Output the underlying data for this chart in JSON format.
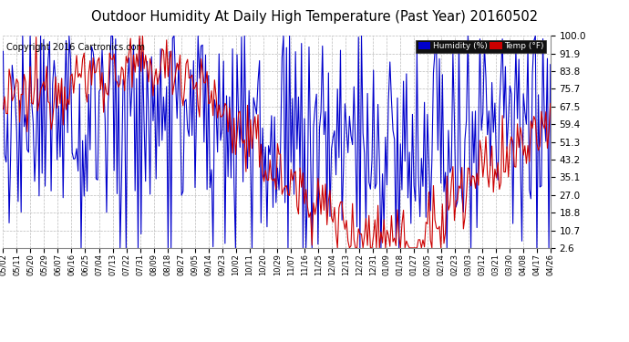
{
  "title": "Outdoor Humidity At Daily High Temperature (Past Year) 20160502",
  "copyright": "Copyright 2016 Cartronics.com",
  "legend_humidity": "Humidity (%)",
  "legend_temp": "Temp (°F)",
  "legend_humidity_bg": "#0000cc",
  "legend_temp_bg": "#cc0000",
  "ylim": [
    2.6,
    100.0
  ],
  "yticks": [
    2.6,
    10.7,
    18.8,
    27.0,
    35.1,
    43.2,
    51.3,
    59.4,
    67.5,
    75.7,
    83.8,
    91.9,
    100.0
  ],
  "x_labels": [
    "05/02",
    "05/11",
    "05/20",
    "05/29",
    "06/07",
    "06/16",
    "06/25",
    "07/04",
    "07/13",
    "07/22",
    "07/31",
    "08/09",
    "08/18",
    "08/27",
    "09/05",
    "09/14",
    "09/23",
    "10/02",
    "10/11",
    "10/20",
    "10/29",
    "11/07",
    "11/16",
    "11/25",
    "12/04",
    "12/13",
    "12/22",
    "12/31",
    "01/09",
    "01/18",
    "01/27",
    "02/05",
    "02/14",
    "02/23",
    "03/03",
    "03/12",
    "03/21",
    "03/30",
    "04/08",
    "04/17",
    "04/26"
  ],
  "background_color": "#ffffff",
  "plot_bg": "#ffffff",
  "grid_color": "#bbbbbb",
  "humidity_color": "#0000cc",
  "temp_color": "#cc0000",
  "title_fontsize": 10.5,
  "copyright_fontsize": 7
}
